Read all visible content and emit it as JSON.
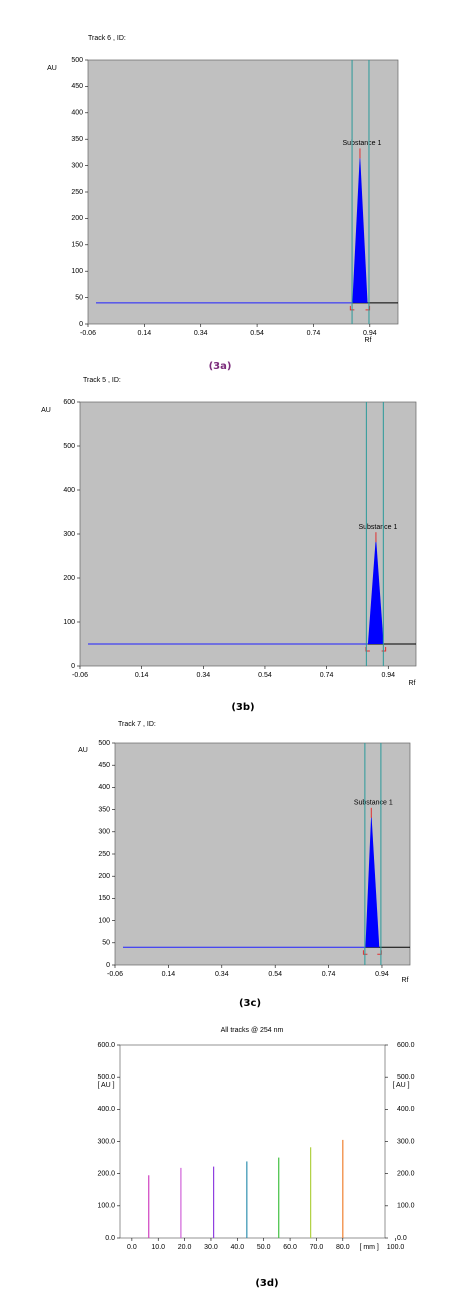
{
  "chart_data": [
    {
      "type": "peak",
      "title": "Track 6 , ID:",
      "ylabel": "AU",
      "xlabel": "Rf",
      "caption": "(3a)",
      "caption_color": "#7a2a7a",
      "xlim": [
        -0.06,
        1.04
      ],
      "ylim": [
        0,
        500
      ],
      "xticks": [
        -0.06,
        0.14,
        0.34,
        0.54,
        0.74,
        0.94
      ],
      "yticks": [
        0,
        50,
        100,
        150,
        200,
        250,
        300,
        350,
        400,
        450,
        500
      ],
      "baseline": 40,
      "markers": [
        0.877,
        0.937
      ],
      "peaks": [
        {
          "name": "Substance 1",
          "start": 0.878,
          "rf": 0.905,
          "end": 0.932,
          "height": 325
        }
      ],
      "color": "#0000ff"
    },
    {
      "type": "peak",
      "title": "Track 5 , ID:",
      "ylabel": "AU",
      "xlabel": "Rf",
      "caption": "(3b)",
      "caption_color": "#000000",
      "xlim": [
        -0.06,
        1.03
      ],
      "ylim": [
        0,
        600
      ],
      "xticks": [
        -0.06,
        0.14,
        0.34,
        0.54,
        0.74,
        0.94
      ],
      "yticks": [
        0,
        100,
        200,
        300,
        400,
        500,
        600
      ],
      "baseline": 50,
      "markers": [
        0.869,
        0.924
      ],
      "peaks": [
        {
          "name": "Substance 1",
          "start": 0.874,
          "rf": 0.9,
          "end": 0.925,
          "height": 295
        }
      ],
      "color": "#0000ff"
    },
    {
      "type": "peak",
      "title": "Track 7 , ID:",
      "ylabel": "AU",
      "xlabel": "Rf",
      "caption": "(3c)",
      "caption_color": "#000000",
      "xlim": [
        -0.06,
        1.045
      ],
      "ylim": [
        0,
        500
      ],
      "xticks": [
        -0.06,
        0.14,
        0.34,
        0.54,
        0.74,
        0.94
      ],
      "yticks": [
        0,
        50,
        100,
        150,
        200,
        250,
        300,
        350,
        400,
        450,
        500
      ],
      "baseline": 40,
      "markers": [
        0.876,
        0.936
      ],
      "peaks": [
        {
          "name": "Substance 1",
          "start": 0.878,
          "rf": 0.9,
          "end": 0.93,
          "height": 345
        }
      ],
      "color": "#0000ff"
    },
    {
      "type": "stem",
      "title": "All tracks @ 254 nm",
      "ylabel": "[ AU ]",
      "x_unit": "[ mm ]",
      "caption": "(3d)",
      "caption_color": "#000000",
      "xlim": [
        -4.5,
        96
      ],
      "ylim": [
        0,
        600
      ],
      "xticks": [
        {
          "value": 0,
          "label": "0.0"
        },
        {
          "value": 10,
          "label": "10.0"
        },
        {
          "value": 20,
          "label": "20.0"
        },
        {
          "value": 30,
          "label": "30.0"
        },
        {
          "value": 40,
          "label": "40.0"
        },
        {
          "value": 50,
          "label": "50.0"
        },
        {
          "value": 60,
          "label": "60.0"
        },
        {
          "value": 70,
          "label": "70.0"
        },
        {
          "value": 80,
          "label": "80.0"
        },
        {
          "value": 100,
          "label": "100.0"
        }
      ],
      "yticks": [
        {
          "value": 0,
          "label": "0.0"
        },
        {
          "value": 100,
          "label": "100.0"
        },
        {
          "value": 200,
          "label": "200.0"
        },
        {
          "value": 300,
          "label": "300.0"
        },
        {
          "value": 400,
          "label": "400.0"
        },
        {
          "value": 500,
          "label": "500.0"
        },
        {
          "value": 600,
          "label": "600.0"
        }
      ],
      "x": [
        6.4,
        18.6,
        31,
        43.6,
        55.7,
        67.8,
        80
      ],
      "values": [
        195,
        218,
        222,
        238,
        250,
        282,
        305
      ],
      "colors": [
        "#d040c0",
        "#d060d8",
        "#9040e0",
        "#3090b0",
        "#40c040",
        "#b0d040",
        "#f08030"
      ]
    }
  ]
}
